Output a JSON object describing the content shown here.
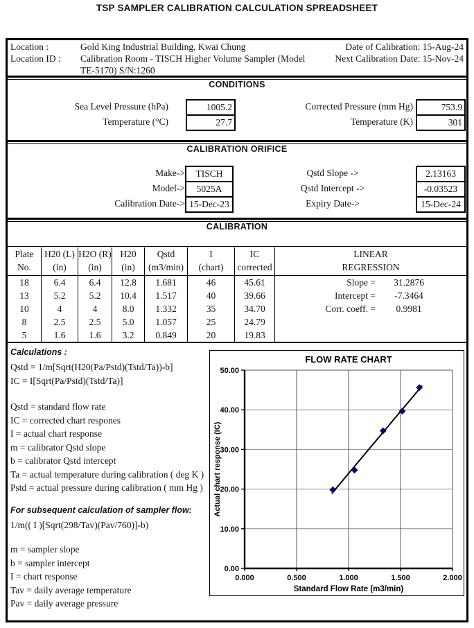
{
  "title": "TSP SAMPLER CALIBRATION CALCULATION SPREADSHEET",
  "location": {
    "label1": "Location :",
    "value1": "Gold King Industrial Building, Kwai Chung",
    "label2": "Location ID  :",
    "value2_line1": "Calibration Room - TISCH Higher Volume Sampler (Model",
    "value2_line2": "TE-5170) S/N:1260",
    "date_label": "Date of Calibration:",
    "date_value": "15-Aug-24",
    "next_label": "Next Calibration Date:",
    "next_value": "15-Nov-24"
  },
  "conditions": {
    "header": "CONDITIONS",
    "fields_left": [
      {
        "label": "Sea Level Pressure  (hPa)",
        "value": "1005.2"
      },
      {
        "label": "Temperature  (°C)",
        "value": "27.7"
      }
    ],
    "fields_right": [
      {
        "label": "Corrected Pressure  (mm Hg)",
        "value": "753.9"
      },
      {
        "label": "Temperature (K)",
        "value": "301"
      }
    ]
  },
  "orifice": {
    "header": "CALIBRATION ORIFICE",
    "fields_left": [
      {
        "label": "Make->",
        "value": "TISCH"
      },
      {
        "label": "Model->",
        "value": "5025A"
      },
      {
        "label": "Calibration Date->",
        "value": "15-Dec-23"
      }
    ],
    "fields_right": [
      {
        "label": "Qstd Slope ->",
        "value": "2.13163"
      },
      {
        "label": "Qstd Intercept ->",
        "value": "-0.03523"
      },
      {
        "label": "Expiry Date->",
        "value": "15-Dec-24"
      }
    ]
  },
  "calibration": {
    "header": "CALIBRATION",
    "col_headers": [
      [
        "Plate",
        "No."
      ],
      [
        "H20 (L)",
        "(in)"
      ],
      [
        "H2O (R)",
        "(in)"
      ],
      [
        "H20",
        "(in)"
      ],
      [
        "Qstd",
        "(m3/min)"
      ],
      [
        "I",
        "(chart)"
      ],
      [
        "IC",
        "corrected"
      ]
    ],
    "regression_header": [
      "LINEAR",
      "REGRESSION"
    ],
    "rows": [
      [
        "18",
        "6.4",
        "6.4",
        "12.8",
        "1.681",
        "46",
        "45.61"
      ],
      [
        "13",
        "5.2",
        "5.2",
        "10.4",
        "1.517",
        "40",
        "39.66"
      ],
      [
        "10",
        "4",
        "4",
        "8.0",
        "1.332",
        "35",
        "34.70"
      ],
      [
        "8",
        "2.5",
        "2.5",
        "5.0",
        "1.057",
        "25",
        "24.79"
      ],
      [
        "5",
        "1.6",
        "1.6",
        "3.2",
        "0.849",
        "20",
        "19.83"
      ]
    ],
    "regression": [
      {
        "label": "Slope =",
        "value": "31.2876"
      },
      {
        "label": "Intercept =",
        "value": "-7.3464"
      },
      {
        "label": "Corr. coeff. =",
        "value": "0.9981"
      }
    ]
  },
  "calculations": {
    "heading1": "Calculations :",
    "lines1": [
      "Qstd = 1/m[Sqrt(H20(Pa/Pstd)(Tstd/Ta))-b]",
      "IC = I[Sqrt(Pa/Pstd)(Tstd/Ta)]"
    ],
    "lines2": [
      "Qstd = standard flow rate",
      "IC = corrected chart respones",
      "I = actual chart response",
      "m = calibrator Qstd slope",
      "b = calibrator Qstd intercept",
      "Ta = actual temperature during calibration ( deg K )",
      "Pstd = actual pressure during calibration ( mm Hg )"
    ],
    "heading2": "For subsequent calculation of sampler flow:",
    "lines3": [
      "1/m(( I )[Sqrt(298/Tav)(Pav/760)]-b)"
    ],
    "lines4": [
      "m = sampler slope",
      "b  = sampler intercept",
      "I = chart response",
      "Tav = daily average temperature",
      "Pav = daily average pressure"
    ]
  },
  "chart_data": {
    "type": "scatter",
    "title": "FLOW RATE CHART",
    "xlabel": "Standard Flow Rate (m3/min)",
    "ylabel": "Actual chart response (IC)",
    "xlim": [
      0,
      2
    ],
    "ylim": [
      0,
      50
    ],
    "x_ticks": [
      "0.000",
      "0.500",
      "1.000",
      "1.500",
      "2.000"
    ],
    "y_ticks": [
      "0.00",
      "10.00",
      "20.00",
      "30.00",
      "40.00",
      "50.00"
    ],
    "points": [
      [
        0.849,
        19.83
      ],
      [
        1.057,
        24.79
      ],
      [
        1.332,
        34.7
      ],
      [
        1.517,
        39.66
      ],
      [
        1.681,
        45.61
      ]
    ],
    "trendline": {
      "slope": 31.2876,
      "intercept": -7.3464,
      "x_start": 0.838,
      "x_end": 1.708
    },
    "point_color": "#000080",
    "grid": true,
    "legend": "none"
  }
}
